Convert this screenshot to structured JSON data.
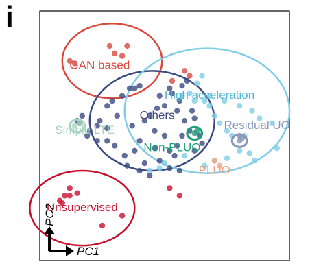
{
  "panel_label": "i",
  "chart_data": {
    "type": "scatter",
    "xlabel": "PC1",
    "ylabel": "PC2",
    "xlim": [
      0,
      100
    ],
    "ylim": [
      0,
      100
    ],
    "grid": false,
    "groups": [
      {
        "name": "GAN based",
        "color": "#d94a3d",
        "label_color": "#d94a3d",
        "ellipse": {
          "cx": 29,
          "cy": 80,
          "rx": 20,
          "ry": 15
        },
        "label_at": [
          24,
          78
        ],
        "points": [
          [
            28,
            86
          ],
          [
            30,
            83
          ],
          [
            33,
            82
          ],
          [
            35,
            86
          ],
          [
            12,
            80
          ],
          [
            14,
            79
          ],
          [
            53,
            72
          ],
          [
            58,
            76
          ],
          [
            60,
            74
          ]
        ]
      },
      {
        "name": "Unsupervised",
        "color": "#c8102e",
        "label_color": "#c8102e",
        "ellipse": {
          "cx": 17,
          "cy": 21,
          "rx": 21,
          "ry": 15
        },
        "label_at": [
          17,
          21
        ],
        "points": [
          [
            12,
            26
          ],
          [
            8,
            24
          ],
          [
            10,
            26
          ],
          [
            15,
            27
          ],
          [
            12,
            29
          ],
          [
            9,
            23
          ],
          [
            33,
            18
          ],
          [
            56,
            26
          ],
          [
            52,
            29
          ],
          [
            25,
            14
          ]
        ]
      },
      {
        "name": "Others",
        "color": "#3b4a80",
        "label_color": "#3b4a80",
        "ellipse": {
          "cx": 45,
          "cy": 56,
          "rx": 25,
          "ry": 20
        },
        "label_at": [
          47,
          58
        ],
        "points": [
          [
            36,
            69
          ],
          [
            38,
            69
          ],
          [
            40,
            70
          ],
          [
            33,
            66
          ],
          [
            29,
            64
          ],
          [
            27,
            62
          ],
          [
            31,
            58
          ],
          [
            37,
            54
          ],
          [
            42,
            56
          ],
          [
            44,
            58
          ],
          [
            47,
            61
          ],
          [
            50,
            62
          ],
          [
            46,
            52
          ],
          [
            40,
            48
          ],
          [
            34,
            42
          ],
          [
            38,
            44
          ],
          [
            42,
            39
          ],
          [
            35,
            38
          ],
          [
            40,
            36
          ],
          [
            44,
            34
          ],
          [
            48,
            40
          ],
          [
            52,
            44
          ],
          [
            55,
            46
          ],
          [
            57,
            50
          ],
          [
            60,
            52
          ],
          [
            62,
            57
          ],
          [
            55,
            60
          ],
          [
            56,
            64
          ],
          [
            53,
            67
          ],
          [
            52,
            69
          ],
          [
            48,
            66
          ],
          [
            23,
            54
          ],
          [
            24,
            56
          ],
          [
            27,
            53
          ],
          [
            17,
            58
          ],
          [
            15,
            56
          ],
          [
            19,
            50
          ],
          [
            20,
            52
          ],
          [
            23,
            48
          ],
          [
            16,
            55
          ],
          [
            27,
            48
          ],
          [
            30,
            46
          ],
          [
            52,
            37
          ],
          [
            56,
            36
          ],
          [
            54,
            42
          ],
          [
            46,
            45
          ],
          [
            50,
            50
          ],
          [
            62,
            44
          ],
          [
            64,
            50
          ],
          [
            65,
            47
          ],
          [
            58,
            56
          ],
          [
            61,
            60
          ],
          [
            57,
            70
          ],
          [
            59,
            72
          ]
        ]
      },
      {
        "name": "High acceleration",
        "color": "#7fcde6",
        "label_color": "#4db6d6",
        "ellipse": {
          "cx": 67,
          "cy": 60,
          "rx": 33,
          "ry": 25
        },
        "label_at": [
          68,
          66
        ],
        "points": [
          [
            63,
            71
          ],
          [
            65,
            74
          ],
          [
            68,
            62
          ],
          [
            70,
            58
          ],
          [
            72,
            55
          ],
          [
            75,
            52
          ],
          [
            66,
            64
          ],
          [
            68,
            66
          ],
          [
            74,
            64
          ],
          [
            80,
            62
          ],
          [
            85,
            60
          ],
          [
            88,
            57
          ],
          [
            93,
            55
          ],
          [
            95,
            45
          ],
          [
            86,
            40
          ],
          [
            84,
            43
          ],
          [
            80,
            44
          ],
          [
            75,
            41
          ],
          [
            70,
            40
          ],
          [
            66,
            38
          ],
          [
            77,
            50
          ],
          [
            82,
            50
          ],
          [
            62,
            64
          ],
          [
            57,
            66
          ],
          [
            60,
            67
          ],
          [
            50,
            39
          ],
          [
            48,
            37
          ],
          [
            44,
            36
          ],
          [
            58,
            42
          ]
        ]
      },
      {
        "name": "Simple LTE",
        "color": "#a5d5c0",
        "label_color": "#a5d5c0",
        "ellipse": {
          "cx": 15,
          "cy": 54,
          "rx": 3,
          "ry": 2.5
        },
        "label_at": [
          18,
          52
        ],
        "points": [
          [
            14,
            54
          ],
          [
            16,
            55
          ]
        ]
      },
      {
        "name": "Non-PLUO",
        "color": "#1a9e77",
        "label_color": "#1a9e77",
        "ellipse": {
          "cx": 62,
          "cy": 51,
          "rx": 3,
          "ry": 2.5
        },
        "label_at": [
          53,
          45
        ],
        "points": [
          [
            62,
            51
          ],
          [
            63,
            52
          ]
        ]
      },
      {
        "name": "Residual UO",
        "color": "#8a96b8",
        "label_color": "#8a96b8",
        "ellipse": {
          "cx": 80,
          "cy": 48,
          "rx": 3,
          "ry": 2.5
        },
        "label_at": [
          87,
          54
        ],
        "points": [
          [
            80,
            48
          ],
          [
            81,
            49
          ],
          [
            80,
            50
          ]
        ]
      },
      {
        "name": "PLUO",
        "color": "#f4a582",
        "label_color": "#f0a07a",
        "ellipse": null,
        "label_at": [
          70,
          36
        ],
        "points": [
          [
            70,
            40
          ],
          [
            72,
            38
          ]
        ]
      }
    ]
  }
}
